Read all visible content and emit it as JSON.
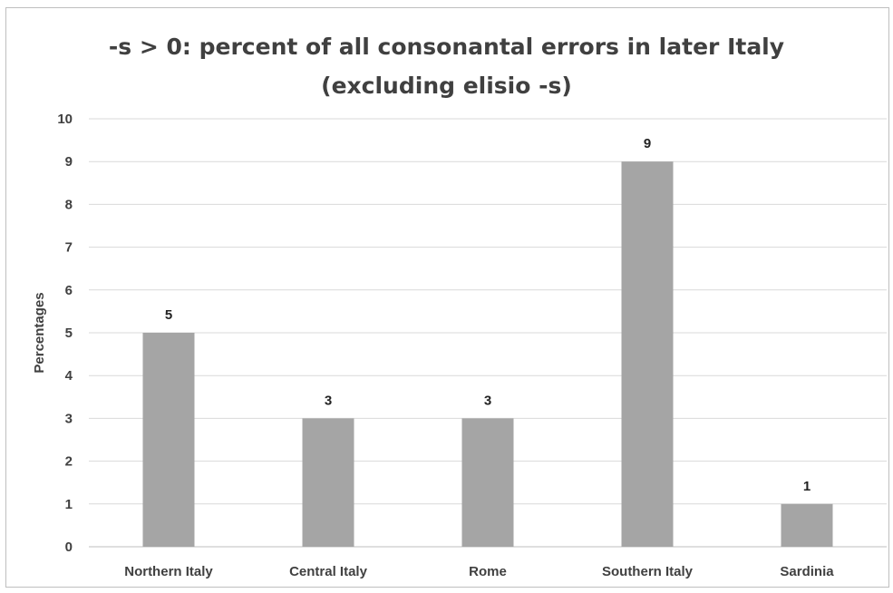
{
  "chart_data": {
    "type": "bar",
    "title_lines": [
      "-s > 0: percent of all consonantal errors in later Italy",
      "(excluding elisio -s)"
    ],
    "xlabel": "",
    "ylabel": "Percentages",
    "categories": [
      "Northern Italy",
      "Central Italy",
      "Rome",
      "Southern Italy",
      "Sardinia"
    ],
    "values": [
      5,
      3,
      3,
      9,
      1
    ],
    "ylim": [
      0,
      10
    ],
    "yticks": [
      0,
      1,
      2,
      3,
      4,
      5,
      6,
      7,
      8,
      9,
      10
    ],
    "grid": true,
    "legend": "none",
    "bar_color": "#a5a5a5",
    "data_labels": true
  }
}
